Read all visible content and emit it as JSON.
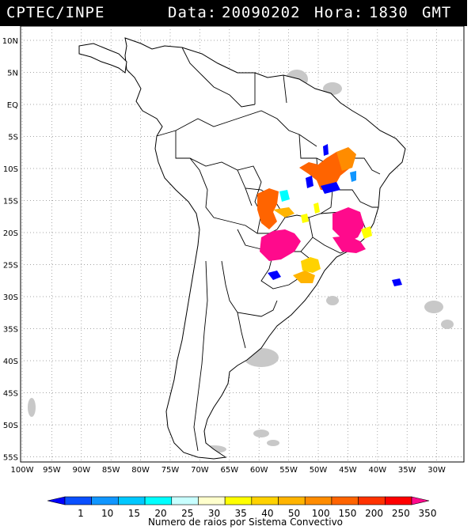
{
  "header": {
    "agency": "CPTEC/INPE",
    "date_label": "Data:",
    "date": "20090202",
    "hour_label": "Hora:",
    "hour": "1830",
    "tz": "GMT"
  },
  "axes": {
    "lat_labels": [
      "10N",
      "5N",
      "EQ",
      "5S",
      "10S",
      "15S",
      "20S",
      "25S",
      "30S",
      "35S",
      "40S",
      "45S",
      "50S",
      "55S"
    ],
    "lon_labels": [
      "100W",
      "95W",
      "90W",
      "85W",
      "80W",
      "75W",
      "70W",
      "65W",
      "60W",
      "55W",
      "50W",
      "45W",
      "40W",
      "35W",
      "30W"
    ]
  },
  "colorbar": {
    "title": "Numero de raios por Sistema Convectivo",
    "labels": [
      "1",
      "10",
      "15",
      "20",
      "25",
      "30",
      "35",
      "40",
      "50",
      "100",
      "150",
      "200",
      "250",
      "350"
    ],
    "colors": [
      "#0000ff",
      "#0a50ff",
      "#1096ff",
      "#00c8ff",
      "#00ffff",
      "#c8ffff",
      "#ffffcc",
      "#ffff00",
      "#ffd200",
      "#ffb400",
      "#ff8c00",
      "#ff6400",
      "#ff3200",
      "#ff0000",
      "#ff0a8c"
    ]
  }
}
